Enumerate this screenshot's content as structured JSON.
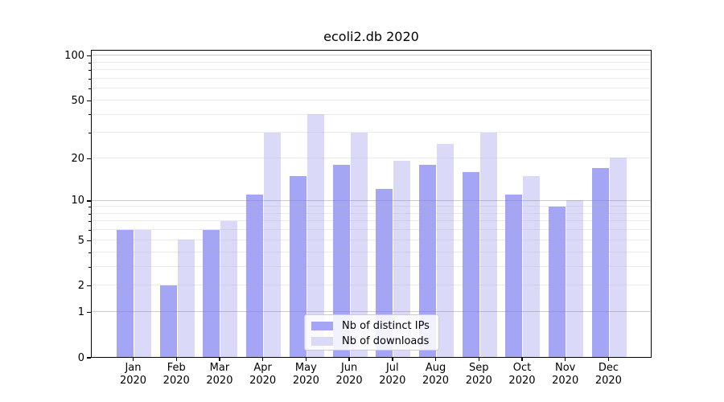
{
  "title": "ecoli2.db 2020",
  "chart_data": {
    "type": "bar",
    "title": "ecoli2.db 2020",
    "categories": [
      "Jan",
      "Feb",
      "Mar",
      "Apr",
      "May",
      "Jun",
      "Jul",
      "Aug",
      "Sep",
      "Oct",
      "Nov",
      "Dec"
    ],
    "x_tick_year": "2020",
    "series": [
      {
        "name": "Nb of distinct IPs",
        "color": "#a5a5f5",
        "values": [
          6,
          2,
          6,
          11,
          15,
          18,
          12,
          18,
          16,
          11,
          9,
          17
        ]
      },
      {
        "name": "Nb of downloads",
        "color": "#dadaf8",
        "values": [
          6,
          5,
          7,
          30,
          40,
          30,
          19,
          25,
          30,
          15,
          10,
          20
        ]
      }
    ],
    "yscale": "log1p",
    "ylim": [
      0,
      110
    ],
    "yticks": [
      100,
      50,
      20,
      10,
      5,
      2,
      1,
      0
    ],
    "minor_yticks": [
      2,
      3,
      4,
      5,
      6,
      7,
      8,
      9,
      20,
      30,
      40,
      50,
      60,
      70,
      80,
      90
    ],
    "grid": "on",
    "legend_position": "lower center",
    "colors": {
      "grid_major": "#cacaca",
      "grid_major_rgba": "rgba(130,130,130,0.42)",
      "grid_minor": "#e9e9e9",
      "grid_minor_rgba": "rgba(170,170,170,0.25)",
      "axis": "#000000",
      "legend_border": "#cccccc",
      "legend_bg": "rgba(255,255,255,0.85)"
    }
  }
}
